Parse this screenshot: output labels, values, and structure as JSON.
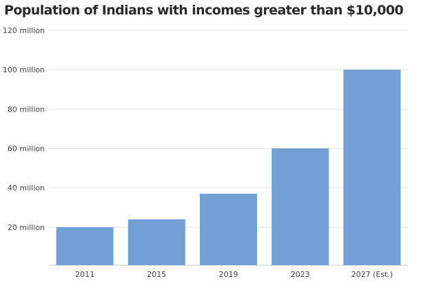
{
  "chart_data": {
    "type": "bar",
    "title": "Population of Indians with incomes greater than $10,000",
    "categories": [
      "2011",
      "2015",
      "2019",
      "2023",
      "2027 (Est.)"
    ],
    "values": [
      20000000,
      24000000,
      37000000,
      60000000,
      100000000
    ],
    "ylim": [
      0,
      120000000
    ],
    "yticks": [
      20000000,
      40000000,
      60000000,
      80000000,
      100000000,
      120000000
    ],
    "ytick_labels": [
      "20 million",
      "40 million",
      "60 million",
      "80 million",
      "100 million",
      "120 million"
    ],
    "xlabel": "",
    "ylabel": "",
    "grid": true,
    "bar_color": "#729fd6"
  }
}
